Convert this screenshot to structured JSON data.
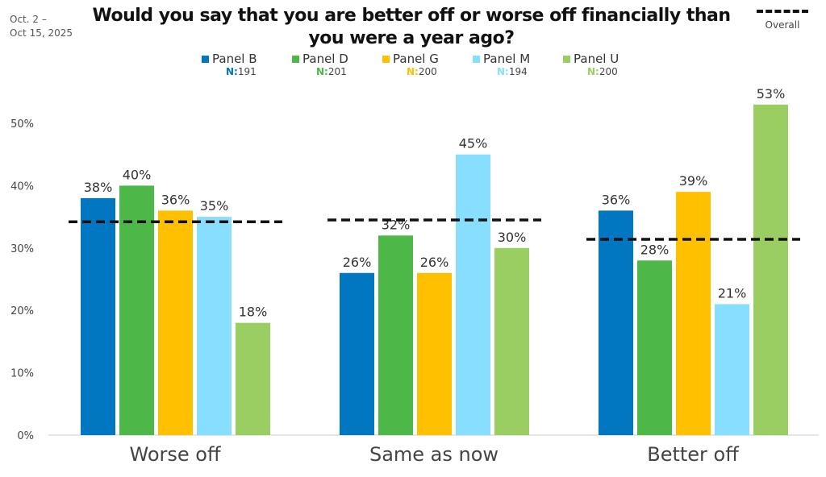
{
  "date_range": [
    "Oct. 2 –",
    "Oct 15, 2025"
  ],
  "overall_legend": "Overall",
  "chart_data": {
    "type": "bar",
    "title": "Would you say that you are better off or worse off financially than you were a year ago?",
    "categories": [
      "Worse off",
      "Same as now",
      "Better off"
    ],
    "series": [
      {
        "name": "Panel B",
        "n_label": "N:",
        "n": "191",
        "color": "#0077C0",
        "values": [
          38,
          26,
          36
        ]
      },
      {
        "name": "Panel D",
        "n_label": "N:",
        "n": "201",
        "color": "#4DB848",
        "values": [
          40,
          32,
          28
        ]
      },
      {
        "name": "Panel G",
        "n_label": "N:",
        "n": "200",
        "color": "#FFC000",
        "values": [
          36,
          26,
          39
        ]
      },
      {
        "name": "Panel M",
        "n_label": "N:",
        "n": "194",
        "color": "#87DEFF",
        "values": [
          35,
          45,
          21
        ]
      },
      {
        "name": "Panel U",
        "n_label": "N:",
        "n": "200",
        "color": "#9ACD62",
        "values": [
          18,
          30,
          53
        ]
      }
    ],
    "overall": {
      "name": "Overall",
      "values": [
        34.2,
        34.5,
        31.4
      ]
    },
    "data_labels": [
      [
        "38%",
        "40%",
        "36%",
        "35%",
        "18%"
      ],
      [
        "26%",
        "32%",
        "26%",
        "45%",
        "30%"
      ],
      [
        "36%",
        "28%",
        "39%",
        "21%",
        "53%"
      ]
    ],
    "yticks": [
      "0%",
      "10%",
      "20%",
      "30%",
      "40%",
      "50%"
    ],
    "ylim": [
      0,
      50
    ],
    "xlabel": "",
    "ylabel": "",
    "grid": false,
    "legend": "top-center"
  }
}
